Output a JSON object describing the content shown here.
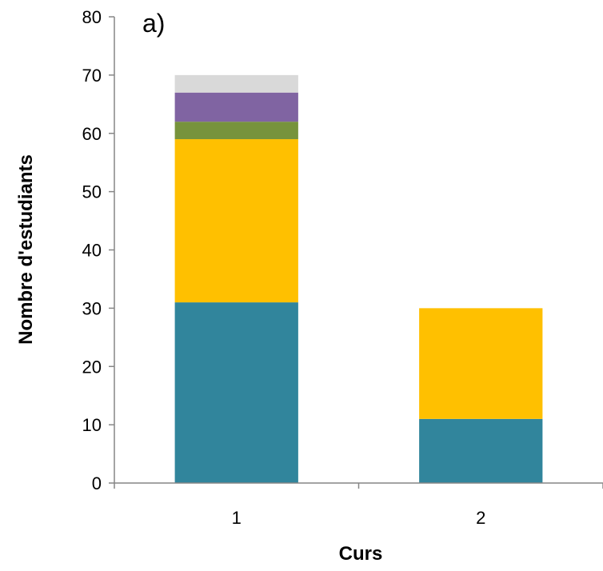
{
  "chart_data": {
    "type": "bar",
    "stacked": true,
    "panel_label": "a)",
    "title": "",
    "xlabel": "Curs",
    "ylabel": "Nombre d'estudiants",
    "categories": [
      "1",
      "2"
    ],
    "ylim": [
      0,
      80
    ],
    "yticks": [
      0,
      10,
      20,
      30,
      40,
      50,
      60,
      70,
      80
    ],
    "grid": false,
    "legend": "none",
    "series": [
      {
        "values": [
          31,
          11
        ],
        "color": "#31859C"
      },
      {
        "values": [
          28,
          19
        ],
        "color": "#FFC000"
      },
      {
        "values": [
          3,
          0
        ],
        "color": "#77933C"
      },
      {
        "values": [
          5,
          0
        ],
        "color": "#8064A2"
      },
      {
        "values": [
          3,
          0
        ],
        "color": "#D9D9D9"
      }
    ]
  }
}
